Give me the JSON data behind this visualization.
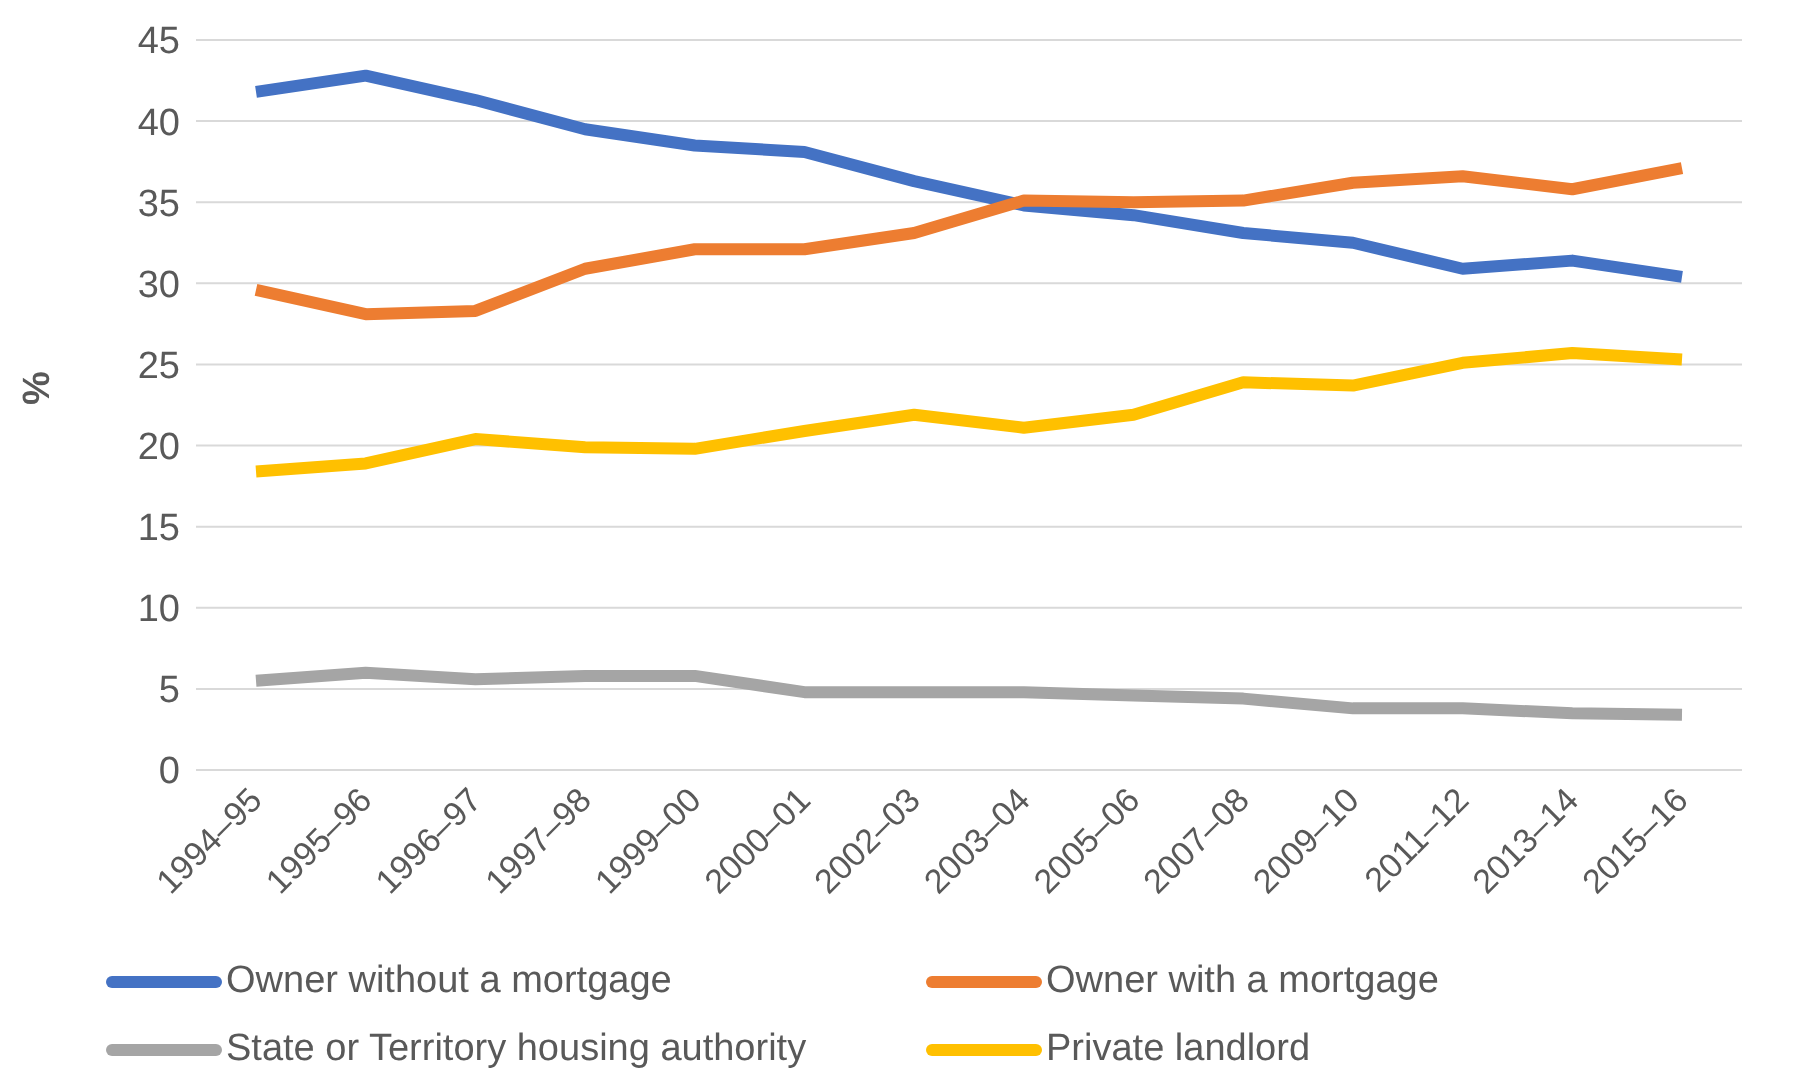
{
  "chart_data": {
    "type": "line",
    "ylabel": "%",
    "categories": [
      "1994–95",
      "1995–96",
      "1996–97",
      "1997–98",
      "1999–00",
      "2000–01",
      "2002–03",
      "2003–04",
      "2005–06",
      "2007–08",
      "2009–10",
      "2011–12",
      "2013–14",
      "2015–16"
    ],
    "series": [
      {
        "name": "Owner without a mortgage",
        "color": "#4472c4",
        "values": [
          41.8,
          42.8,
          41.3,
          39.5,
          38.5,
          38.1,
          36.3,
          34.8,
          34.2,
          33.1,
          32.5,
          30.9,
          31.4,
          30.4
        ]
      },
      {
        "name": "Owner with a mortgage",
        "color": "#ed7d31",
        "values": [
          29.6,
          28.1,
          28.3,
          30.9,
          32.1,
          32.1,
          33.1,
          35.1,
          35.0,
          35.1,
          36.2,
          36.6,
          35.8,
          37.1
        ]
      },
      {
        "name": "State or Territory housing authority",
        "color": "#a5a5a5",
        "values": [
          5.5,
          6.0,
          5.6,
          5.8,
          5.8,
          4.8,
          4.8,
          4.8,
          4.6,
          4.4,
          3.8,
          3.8,
          3.5,
          3.4
        ]
      },
      {
        "name": "Private landlord",
        "color": "#ffc000",
        "values": [
          18.4,
          18.9,
          20.4,
          19.9,
          19.8,
          20.9,
          21.9,
          21.1,
          21.9,
          23.9,
          23.7,
          25.1,
          25.7,
          25.3
        ]
      }
    ],
    "ylim": [
      0,
      45
    ],
    "yticks": [
      0,
      5,
      10,
      15,
      20,
      25,
      30,
      35,
      40,
      45
    ],
    "grid": "y",
    "legend": "bottom",
    "marker": "none",
    "line_style": "solid"
  }
}
